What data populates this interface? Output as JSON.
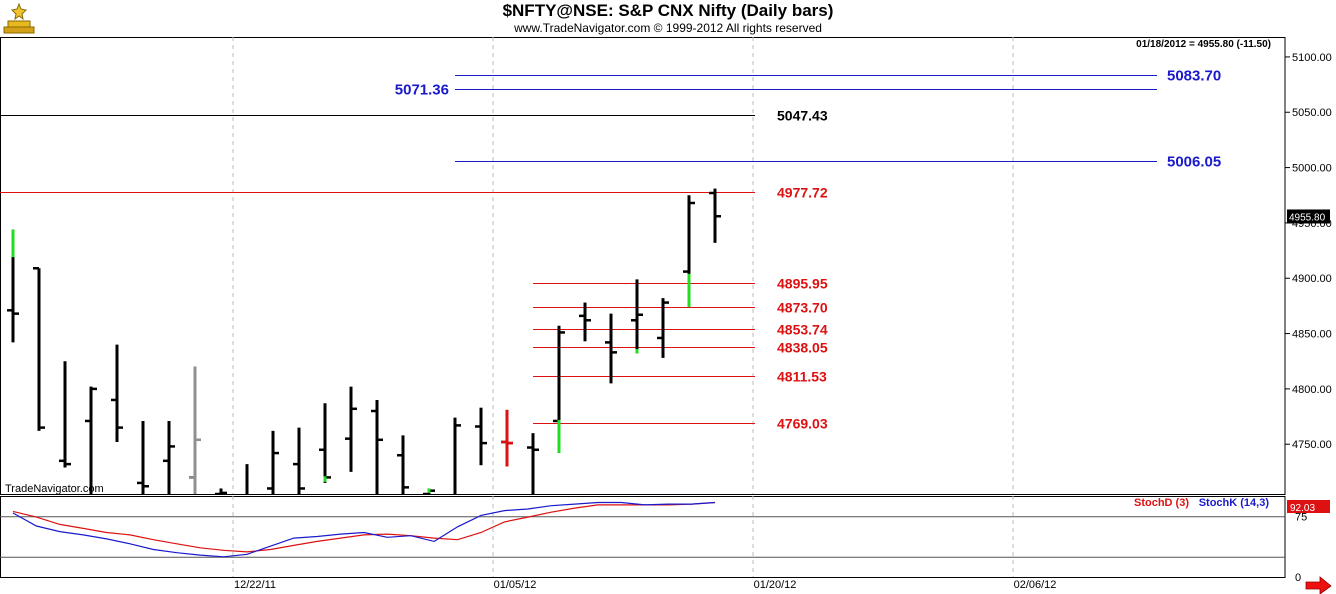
{
  "header": {
    "title": "$NFTY@NSE:  S&P CNX Nifty  (Daily bars)",
    "copyright": "www.TradeNavigator.com © 1999-2012 All rights reserved"
  },
  "watermark": "TradeNavigator.com",
  "colors": {
    "bar": "#000000",
    "up_highlight": "#22dd22",
    "down_highlight": "#dd1111",
    "neutral_highlight": "#909090",
    "resistance_blue": "#1a1acc",
    "level_red": "#dd1111",
    "level_black": "#000000",
    "grid": "#bbbbbb",
    "stochD": "#dd1111",
    "stochK": "#1a1acc"
  },
  "chart_data": [
    {
      "type": "bar",
      "chart_subtype": "ohlc",
      "symbol": "$NFTY@NSE",
      "name": "S&P CNX Nifty",
      "interval": "Daily bars",
      "last_quote": {
        "date": "01/18/2012",
        "close": "4955.80",
        "change": "-11.50",
        "text": "01/18/2012 = 4955.80 (-11.50)"
      },
      "last_price_label": "4955.80",
      "ylim": [
        4705,
        5118
      ],
      "yticks": [
        "5100.00",
        "5050.00",
        "5000.00",
        "4950.00",
        "4900.00",
        "4850.00",
        "4800.00",
        "4750.00"
      ],
      "xticks": [
        "12/22/11",
        "01/05/12",
        "01/20/12",
        "02/06/12"
      ],
      "grid": true,
      "bars": [
        {
          "open": 4871,
          "high": 4944,
          "low": 4842,
          "close": 4868,
          "mark": "up",
          "mark_from": 4944,
          "mark_to": 4919
        },
        {
          "open": 4909,
          "high": 4909,
          "low": 4762,
          "close": 4765
        },
        {
          "open": 4735,
          "high": 4825,
          "low": 4729,
          "close": 4732
        },
        {
          "open": 4771,
          "high": 4802,
          "low": 4680,
          "close": 4800
        },
        {
          "open": 4790,
          "high": 4840,
          "low": 4752,
          "close": 4765
        },
        {
          "open": 4715,
          "high": 4771,
          "low": 4660,
          "close": 4712
        },
        {
          "open": 4735,
          "high": 4771,
          "low": 4690,
          "close": 4748
        },
        {
          "open": 4720,
          "high": 4820,
          "low": 4665,
          "close": 4754,
          "mark": "neutral",
          "mark_from": 4820,
          "mark_to": 4665
        },
        {
          "open": 4705,
          "high": 4710,
          "low": 4680,
          "close": 4706
        },
        {
          "open": 4695,
          "high": 4732,
          "low": 4660,
          "close": 4700
        },
        {
          "open": 4710,
          "high": 4762,
          "low": 4700,
          "close": 4742
        },
        {
          "open": 4732,
          "high": 4765,
          "low": 4695,
          "close": 4710
        },
        {
          "open": 4745,
          "high": 4787,
          "low": 4715,
          "close": 4720,
          "mark": "up",
          "mark_from": 4721,
          "mark_to": 4716
        },
        {
          "open": 4755,
          "high": 4802,
          "low": 4725,
          "close": 4782
        },
        {
          "open": 4780,
          "high": 4790,
          "low": 4690,
          "close": 4754
        },
        {
          "open": 4740,
          "high": 4758,
          "low": 4700,
          "close": 4711
        },
        {
          "open": 4705,
          "high": 4710,
          "low": 4690,
          "close": 4708,
          "mark": "up",
          "mark_from": 4710,
          "mark_to": 4706
        },
        {
          "open": 4700,
          "high": 4774,
          "low": 4700,
          "close": 4767
        },
        {
          "open": 4766,
          "high": 4783,
          "low": 4731,
          "close": 4751
        },
        {
          "open": 4752,
          "high": 4781,
          "low": 4730,
          "close": 4751,
          "mark": "down",
          "mark_from": 4781,
          "mark_to": 4730
        },
        {
          "open": 4747,
          "high": 4760,
          "low": 4705,
          "close": 4745
        },
        {
          "open": 4771,
          "high": 4857,
          "low": 4742,
          "close": 4851,
          "mark": "up",
          "mark_from": 4772,
          "mark_to": 4742
        },
        {
          "open": 4866,
          "high": 4878,
          "low": 4843,
          "close": 4862
        },
        {
          "open": 4842,
          "high": 4868,
          "low": 4805,
          "close": 4833
        },
        {
          "open": 4862,
          "high": 4899,
          "low": 4832,
          "close": 4867,
          "mark": "up",
          "mark_from": 4836,
          "mark_to": 4832
        },
        {
          "open": 4846,
          "high": 4882,
          "low": 4828,
          "close": 4878
        },
        {
          "open": 4906,
          "high": 4975,
          "low": 4874,
          "close": 4968,
          "mark": "up",
          "mark_from": 4904,
          "mark_to": 4874
        },
        {
          "open": 4977,
          "high": 4981,
          "low": 4932,
          "close": 4956
        }
      ],
      "levels": [
        {
          "value": 5083.7,
          "label": "5083.70",
          "color": "blue",
          "span": "right",
          "label_side": "right"
        },
        {
          "value": 5071.36,
          "label": "5071.36",
          "color": "blue",
          "span": "right",
          "label_side": "left"
        },
        {
          "value": 5047.43,
          "label": "5047.43",
          "color": "black",
          "span": "full",
          "label_side": "right"
        },
        {
          "value": 5006.05,
          "label": "5006.05",
          "color": "blue",
          "span": "right",
          "label_side": "right"
        },
        {
          "value": 4977.72,
          "label": "4977.72",
          "color": "red",
          "span": "full",
          "label_side": "right"
        },
        {
          "value": 4895.95,
          "label": "4895.95",
          "color": "red",
          "span": "short",
          "label_side": "right"
        },
        {
          "value": 4873.7,
          "label": "4873.70",
          "color": "red",
          "span": "short",
          "label_side": "right"
        },
        {
          "value": 4853.74,
          "label": "4853.74",
          "color": "red",
          "span": "short",
          "label_side": "right"
        },
        {
          "value": 4838.05,
          "label": "4838.05",
          "color": "red",
          "span": "short",
          "label_side": "right"
        },
        {
          "value": 4811.53,
          "label": "4811.53",
          "color": "red",
          "span": "short",
          "label_side": "right"
        },
        {
          "value": 4769.03,
          "label": "4769.03",
          "color": "red",
          "span": "short",
          "label_side": "right"
        }
      ]
    },
    {
      "type": "line",
      "name": "Stochastic",
      "ylim": [
        0,
        100
      ],
      "yticks": [
        "75",
        "0"
      ],
      "reference_lines": [
        75,
        25
      ],
      "last_value_label": "92.03",
      "series": [
        {
          "name": "StochD (3)",
          "color": "red",
          "values": [
            81,
            74,
            65,
            60,
            55,
            52,
            46,
            41,
            36,
            33,
            31,
            34,
            39,
            44,
            48,
            52,
            53,
            51,
            48,
            46,
            55,
            68,
            74,
            80,
            85,
            89,
            89,
            89,
            89,
            90,
            92
          ]
        },
        {
          "name": "StochK (14,3)",
          "color": "blue",
          "values": [
            79,
            63,
            56,
            52,
            47,
            41,
            34,
            30,
            27,
            25,
            28,
            38,
            48,
            50,
            53,
            55,
            49,
            51,
            44,
            62,
            76,
            82,
            84,
            88,
            90,
            92,
            92,
            89,
            90,
            90,
            92
          ]
        }
      ]
    }
  ]
}
